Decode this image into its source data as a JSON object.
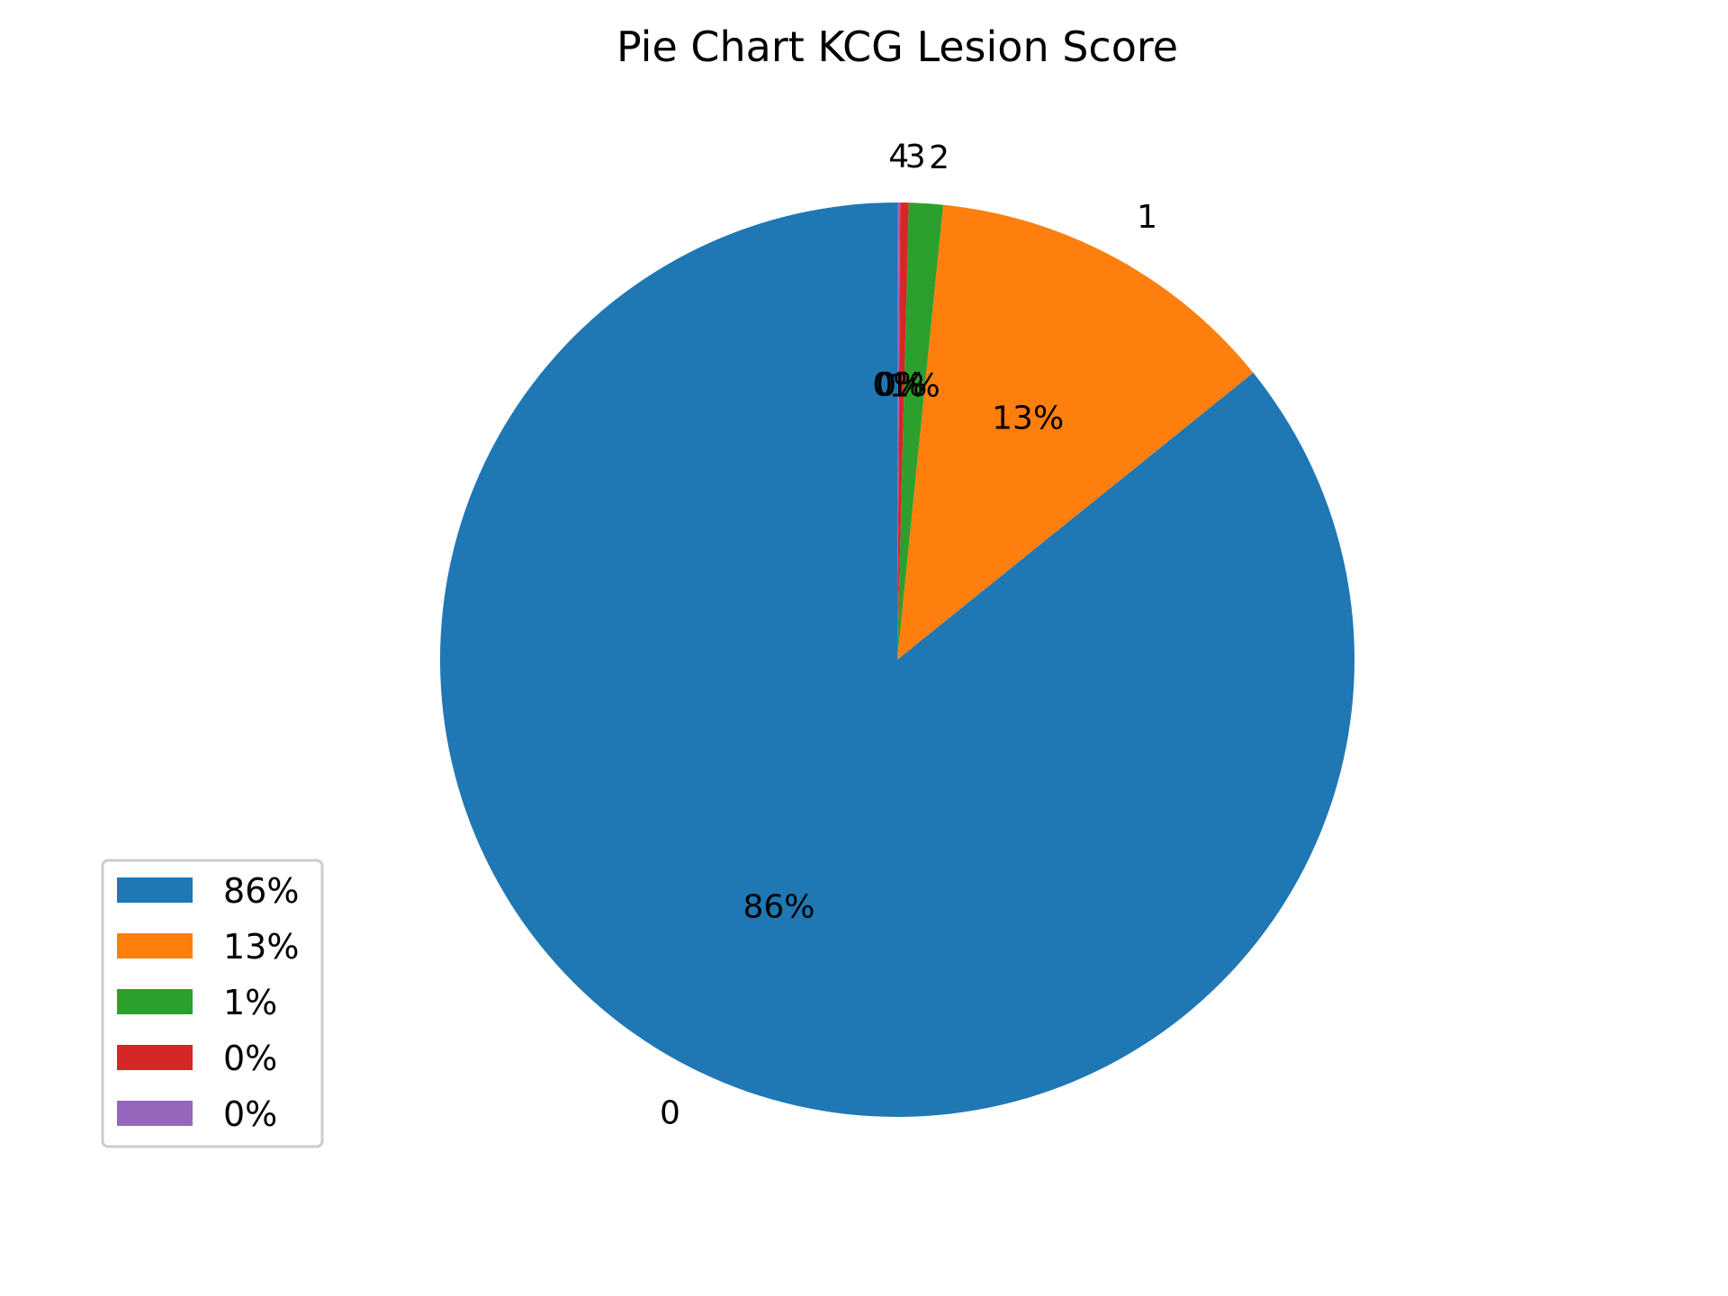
{
  "chart_data": {
    "type": "pie",
    "title": "Pie Chart KCG Lesion Score",
    "start_angle": 90,
    "direction": "counterclockwise",
    "slices": [
      {
        "label": "0",
        "value": 85.8,
        "pct_label": "86%",
        "color": "#1f77b4"
      },
      {
        "label": "1",
        "value": 12.6,
        "pct_label": "13%",
        "color": "#ff7f0e"
      },
      {
        "label": "2",
        "value": 1.2,
        "pct_label": "1%",
        "color": "#2ca02c"
      },
      {
        "label": "3",
        "value": 0.3,
        "pct_label": "0%",
        "color": "#d62728"
      },
      {
        "label": "4",
        "value": 0.1,
        "pct_label": "0%",
        "color": "#9467bd"
      }
    ],
    "legend": {
      "placement": "lower-left",
      "entries": [
        "86%",
        "13%",
        "1%",
        "0%",
        "0%"
      ]
    }
  }
}
